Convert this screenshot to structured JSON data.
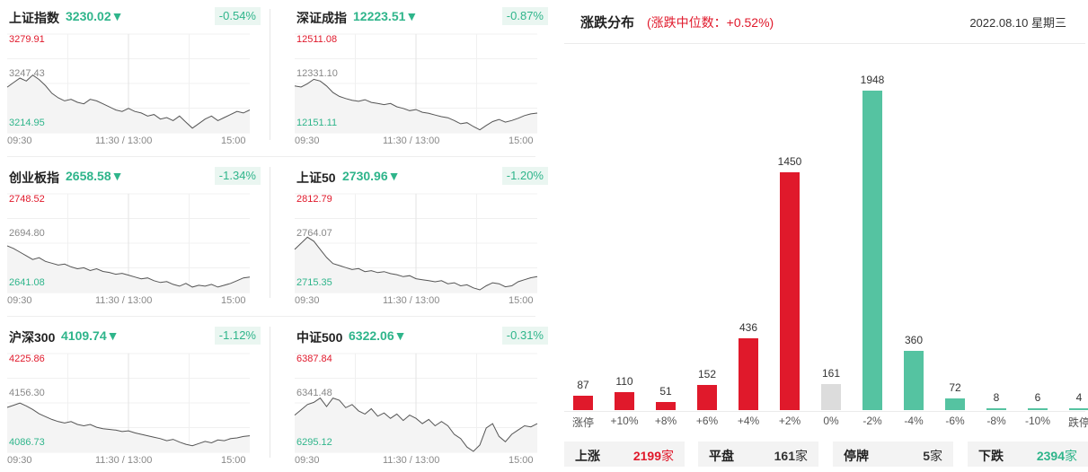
{
  "indices": [
    {
      "name": "上证指数",
      "value": "3230.02▼",
      "change": "-0.54%",
      "high": "3279.91",
      "mid": "3247.43",
      "low": "3214.95",
      "times": [
        "09:30",
        "11:30 / 13:00",
        "15:00"
      ],
      "series": [
        3245,
        3248,
        3251,
        3249,
        3253,
        3250,
        3246,
        3241,
        3238,
        3236,
        3237,
        3235,
        3234,
        3237,
        3236,
        3234,
        3232,
        3230,
        3229,
        3231,
        3229,
        3228,
        3226,
        3227,
        3224,
        3225,
        3223,
        3226,
        3222,
        3218,
        3221,
        3224,
        3226,
        3223,
        3225,
        3227,
        3229,
        3228,
        3230
      ]
    },
    {
      "name": "深证成指",
      "value": "12223.51▼",
      "change": "-0.87%",
      "high": "12511.08",
      "mid": "12331.10",
      "low": "12151.11",
      "times": [
        "09:30",
        "11:30 / 13:00",
        "15:00"
      ],
      "series": [
        12322,
        12318,
        12330,
        12346,
        12340,
        12322,
        12298,
        12284,
        12276,
        12270,
        12266,
        12272,
        12262,
        12258,
        12254,
        12258,
        12246,
        12240,
        12232,
        12236,
        12226,
        12222,
        12216,
        12210,
        12206,
        12196,
        12184,
        12188,
        12174,
        12162,
        12178,
        12192,
        12200,
        12190,
        12196,
        12204,
        12214,
        12220,
        12223
      ]
    },
    {
      "name": "创业板指",
      "value": "2658.58▼",
      "change": "-1.34%",
      "high": "2748.52",
      "mid": "2694.80",
      "low": "2641.08",
      "times": [
        "09:30",
        "11:30 / 13:00",
        "15:00"
      ],
      "series": [
        2692,
        2689,
        2685,
        2681,
        2677,
        2679,
        2675,
        2673,
        2671,
        2672,
        2669,
        2667,
        2668,
        2665,
        2667,
        2664,
        2663,
        2661,
        2662,
        2660,
        2658,
        2656,
        2657,
        2654,
        2652,
        2653,
        2650,
        2648,
        2651,
        2647,
        2649,
        2648,
        2650,
        2647,
        2649,
        2651,
        2654,
        2657,
        2658
      ]
    },
    {
      "name": "上证50",
      "value": "2730.96▼",
      "change": "-1.20%",
      "high": "2812.79",
      "mid": "2764.07",
      "low": "2715.35",
      "times": [
        "09:30",
        "11:30 / 13:00",
        "15:00"
      ],
      "series": [
        2758,
        2764,
        2770,
        2766,
        2758,
        2750,
        2744,
        2742,
        2740,
        2738,
        2739,
        2736,
        2737,
        2735,
        2736,
        2734,
        2733,
        2731,
        2732,
        2729,
        2728,
        2727,
        2726,
        2727,
        2724,
        2725,
        2722,
        2723,
        2720,
        2718,
        2722,
        2725,
        2724,
        2721,
        2722,
        2726,
        2728,
        2730,
        2731
      ]
    },
    {
      "name": "沪深300",
      "value": "4109.74▼",
      "change": "-1.12%",
      "high": "4225.86",
      "mid": "4156.30",
      "low": "4086.73",
      "times": [
        "09:30",
        "11:30 / 13:00",
        "15:00"
      ],
      "series": [
        4150,
        4153,
        4156,
        4152,
        4147,
        4141,
        4137,
        4133,
        4130,
        4128,
        4130,
        4126,
        4124,
        4126,
        4122,
        4120,
        4119,
        4118,
        4116,
        4117,
        4114,
        4112,
        4110,
        4108,
        4106,
        4103,
        4105,
        4101,
        4098,
        4096,
        4099,
        4102,
        4100,
        4104,
        4103,
        4106,
        4107,
        4109,
        4110
      ]
    },
    {
      "name": "中证500",
      "value": "6322.06▼",
      "change": "-0.31%",
      "high": "6387.84",
      "mid": "6341.48",
      "low": "6295.12",
      "times": [
        "09:30",
        "11:30 / 13:00",
        "15:00"
      ],
      "series": [
        6330,
        6335,
        6340,
        6342,
        6346,
        6338,
        6346,
        6344,
        6337,
        6340,
        6334,
        6331,
        6336,
        6329,
        6332,
        6327,
        6331,
        6325,
        6330,
        6327,
        6322,
        6326,
        6320,
        6324,
        6320,
        6312,
        6308,
        6300,
        6296,
        6302,
        6318,
        6322,
        6310,
        6305,
        6312,
        6316,
        6320,
        6319,
        6322
      ]
    }
  ],
  "distribution": {
    "title": "涨跌分布",
    "subtitle": "(涨跌中位数：+0.52%)",
    "date": "2022.08.10 星期三",
    "colors": {
      "up": "#e0192b",
      "flat": "#dcdcdc",
      "down": "#55c3a1"
    }
  },
  "chart_data": {
    "type": "bar",
    "categories": [
      "涨停",
      "+10%",
      "+8%",
      "+6%",
      "+4%",
      "+2%",
      "0%",
      "-2%",
      "-4%",
      "-6%",
      "-8%",
      "-10%",
      "跌停"
    ],
    "values": [
      87,
      110,
      51,
      152,
      436,
      1450,
      161,
      1948,
      360,
      72,
      8,
      6,
      4
    ],
    "value_labels": [
      "87",
      "110",
      "51",
      "152",
      "436",
      "1450",
      "161",
      "1948",
      "360",
      "72",
      "8",
      "6",
      "4"
    ],
    "groups": [
      "up",
      "up",
      "up",
      "up",
      "up",
      "up",
      "flat",
      "down",
      "down",
      "down",
      "down",
      "down",
      "down"
    ],
    "ylim": [
      0,
      1948
    ]
  },
  "stats": [
    {
      "label": "上涨",
      "count": "2199",
      "unit": "家",
      "color": "#e0192b"
    },
    {
      "label": "平盘",
      "count": "161",
      "unit": "家",
      "color": "#333333"
    },
    {
      "label": "停牌",
      "count": "5",
      "unit": "家",
      "color": "#333333"
    },
    {
      "label": "下跌",
      "count": "2394",
      "unit": "家",
      "color": "#2fb58b"
    }
  ]
}
